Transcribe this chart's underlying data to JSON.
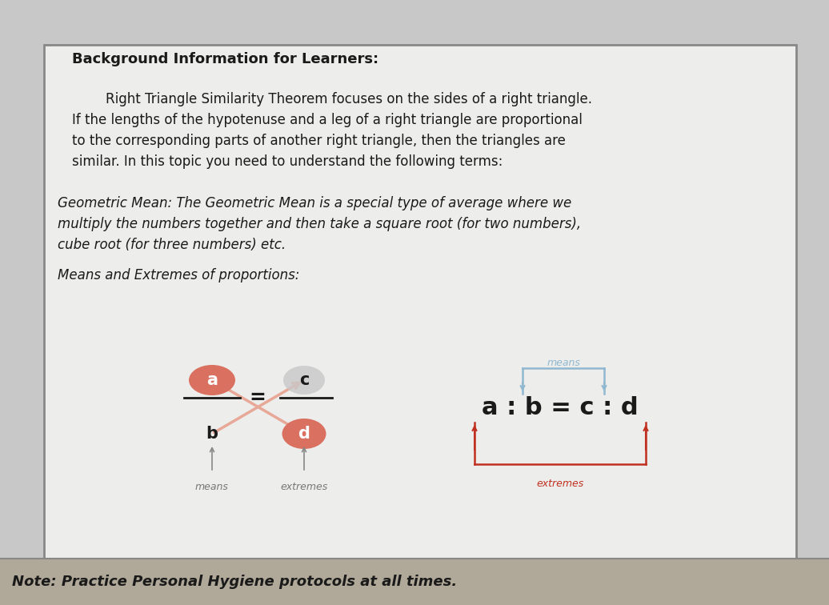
{
  "bg_color": "#c8c8c8",
  "paper_color": "#ededeb",
  "border_color": "#888888",
  "title": "Background Information for Learners:",
  "para1_indent": "        Right Triangle Similarity Theorem focuses on the sides of a right triangle.",
  "para1_line2": "If the lengths of the hypotenuse and a leg of a right triangle are proportional",
  "para1_line3": "to the corresponding parts of another right triangle, then the triangles are",
  "para1_line4": "similar. In this topic you need to understand the following terms:",
  "para2_line1": "Geometric Mean: The Geometric Mean is a special type of average where we",
  "para2_line2": "multiply the numbers together and then take a square root (for two numbers),",
  "para2_line3": "cube root (for three numbers) etc.",
  "para3": "Means and Extremes of proportions:",
  "note": "Note: Practice Personal Hygiene protocols at all times.",
  "salmon_color": "#d97060",
  "light_salmon": "#e8a898",
  "blue_color": "#90b8d0",
  "red_arrow_color": "#c03020",
  "dark_text": "#1a1a1a",
  "gray_label": "#777777",
  "note_bg": "#b0a898",
  "title_fontsize": 13,
  "body_fontsize": 12,
  "italic_fontsize": 12
}
